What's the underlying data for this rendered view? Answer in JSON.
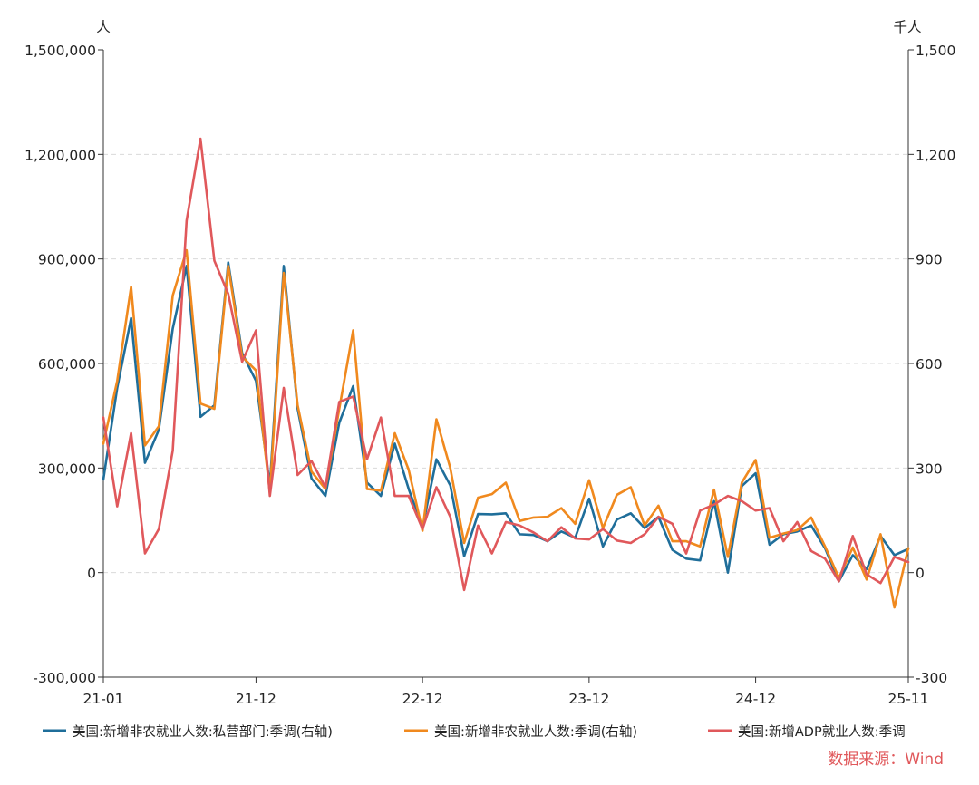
{
  "chart_data": {
    "type": "line",
    "left_unit": "人",
    "right_unit": "千人",
    "y_ticks_left": [
      "1,500,000",
      "1,200,000",
      "900,000",
      "600,000",
      "300,000",
      "0",
      "-300,000"
    ],
    "y_ticks_right": [
      "1,500",
      "1,200",
      "900",
      "600",
      "300",
      "0",
      "-300"
    ],
    "ylim_right": [
      -300,
      1500
    ],
    "ylim_left": [
      -300000,
      1500000
    ],
    "x_ticks": [
      "21-01",
      "21-12",
      "22-12",
      "23-12",
      "24-12",
      "25-11"
    ],
    "x_start": "2021-01",
    "x_end": "2025-11",
    "grid": true,
    "legend_position": "bottom",
    "source": "数据来源：Wind",
    "series": [
      {
        "name": "美国:新增非农就业人数:私营部门:季调(右轴)",
        "color": "#1f6e9a",
        "axis": "right",
        "values": [
          267,
          530,
          730,
          315,
          410,
          700,
          880,
          447,
          480,
          890,
          630,
          550,
          250,
          880,
          470,
          270,
          220,
          430,
          535,
          258,
          220,
          370,
          240,
          130,
          325,
          250,
          47,
          168,
          167,
          170,
          110,
          108,
          90,
          118,
          100,
          212,
          75,
          152,
          170,
          128,
          160,
          65,
          40,
          35,
          205,
          0,
          248,
          285,
          80,
          110,
          118,
          135,
          70,
          -25,
          50,
          10,
          105,
          50,
          68
        ]
      },
      {
        "name": "美国:新增非农就业人数:季调(右轴)",
        "color": "#f0891e",
        "axis": "right",
        "values": [
          370,
          550,
          820,
          365,
          420,
          795,
          925,
          485,
          470,
          880,
          620,
          580,
          230,
          860,
          480,
          290,
          240,
          470,
          695,
          240,
          235,
          400,
          295,
          120,
          440,
          300,
          85,
          215,
          225,
          258,
          148,
          158,
          160,
          185,
          140,
          265,
          128,
          223,
          245,
          135,
          192,
          90,
          90,
          75,
          238,
          45,
          258,
          323,
          100,
          112,
          122,
          158,
          75,
          -15,
          72,
          -20,
          110,
          -100,
          70
        ]
      },
      {
        "name": "美国:新增ADP就业人数:季调",
        "color": "#e0585b",
        "axis": "right",
        "values": [
          445,
          190,
          400,
          55,
          125,
          350,
          1010,
          1245,
          895,
          800,
          605,
          695,
          220,
          530,
          280,
          320,
          245,
          490,
          505,
          325,
          445,
          220,
          220,
          125,
          245,
          160,
          -50,
          135,
          55,
          145,
          135,
          115,
          90,
          130,
          98,
          95,
          125,
          92,
          85,
          110,
          160,
          140,
          55,
          178,
          195,
          220,
          205,
          178,
          185,
          90,
          145,
          62,
          40,
          -25,
          105,
          -5,
          -30,
          45,
          30
        ]
      }
    ]
  }
}
